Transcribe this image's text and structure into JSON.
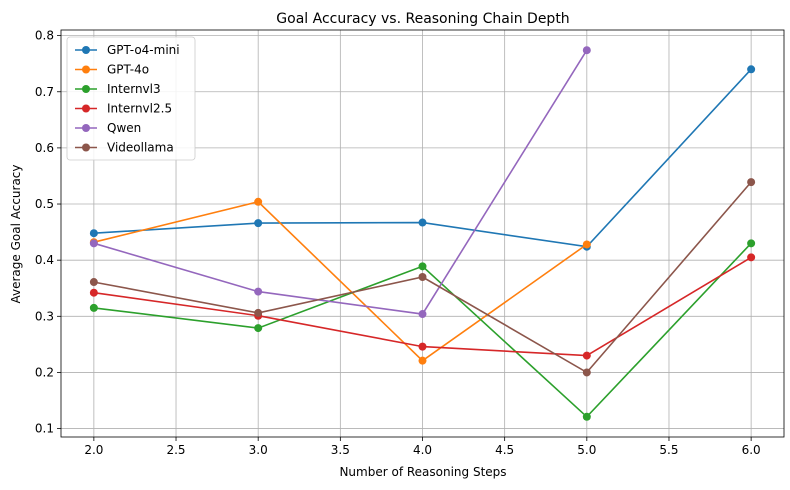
{
  "chart_data": {
    "type": "line",
    "title": "Goal Accuracy vs. Reasoning Chain Depth",
    "xlabel": "Number of Reasoning Steps",
    "ylabel": "Average Goal Accuracy",
    "xlim": [
      1.8,
      6.2
    ],
    "ylim": [
      0.085,
      0.81
    ],
    "xticks": [
      "2.0",
      "2.5",
      "3.0",
      "3.5",
      "4.0",
      "4.5",
      "5.0",
      "5.5",
      "6.0"
    ],
    "yticks": [
      "0.1",
      "0.2",
      "0.3",
      "0.4",
      "0.5",
      "0.6",
      "0.7",
      "0.8"
    ],
    "grid": true,
    "legend_position": "top-left",
    "series": [
      {
        "name": "GPT-o4-mini",
        "color": "#1f77b4",
        "x": [
          2,
          3,
          4,
          5,
          6
        ],
        "y": [
          0.448,
          0.466,
          0.467,
          0.424,
          0.74
        ]
      },
      {
        "name": "GPT-4o",
        "color": "#ff7f0e",
        "x": [
          2,
          3,
          4,
          5
        ],
        "y": [
          0.432,
          0.504,
          0.221,
          0.428
        ]
      },
      {
        "name": "Internvl3",
        "color": "#2ca02c",
        "x": [
          2,
          3,
          4,
          5,
          6
        ],
        "y": [
          0.315,
          0.279,
          0.389,
          0.121,
          0.43
        ]
      },
      {
        "name": "Internvl2.5",
        "color": "#d62728",
        "x": [
          2,
          3,
          4,
          5,
          6
        ],
        "y": [
          0.342,
          0.301,
          0.246,
          0.23,
          0.405
        ]
      },
      {
        "name": "Qwen",
        "color": "#9467bd",
        "x": [
          2,
          3,
          4,
          5
        ],
        "y": [
          0.43,
          0.344,
          0.304,
          0.774
        ]
      },
      {
        "name": "Videollama",
        "color": "#8c564b",
        "x": [
          2,
          3,
          4,
          5,
          6
        ],
        "y": [
          0.361,
          0.306,
          0.37,
          0.2,
          0.539
        ]
      }
    ]
  }
}
